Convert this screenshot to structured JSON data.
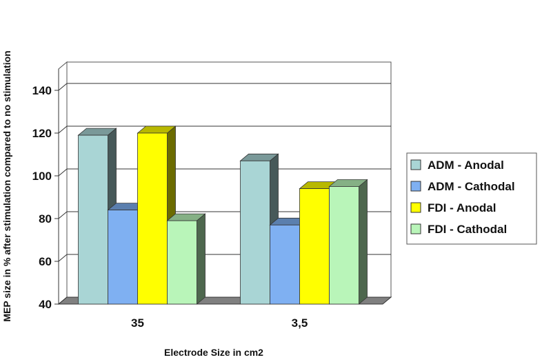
{
  "chart_data": {
    "type": "bar",
    "title": "",
    "xlabel": "Electrode Size in cm2",
    "ylabel": "MEP size in % after stimulation compared to no stimulation",
    "categories": [
      "35",
      "3,5"
    ],
    "series": [
      {
        "name": "ADM - Anodal",
        "color": "#a9d5d5",
        "values": [
          119,
          107
        ]
      },
      {
        "name": "ADM - Cathodal",
        "color": "#7fb0f2",
        "values": [
          84,
          77
        ]
      },
      {
        "name": "FDI - Anodal",
        "color": "#ffff00",
        "values": [
          120,
          94
        ]
      },
      {
        "name": "FDI - Cathodal",
        "color": "#b9f5b9",
        "values": [
          79,
          95
        ]
      }
    ],
    "ylim": [
      40,
      150
    ],
    "yticks": [
      40,
      60,
      80,
      100,
      120,
      140
    ],
    "grid": true,
    "legend_position": "right"
  }
}
